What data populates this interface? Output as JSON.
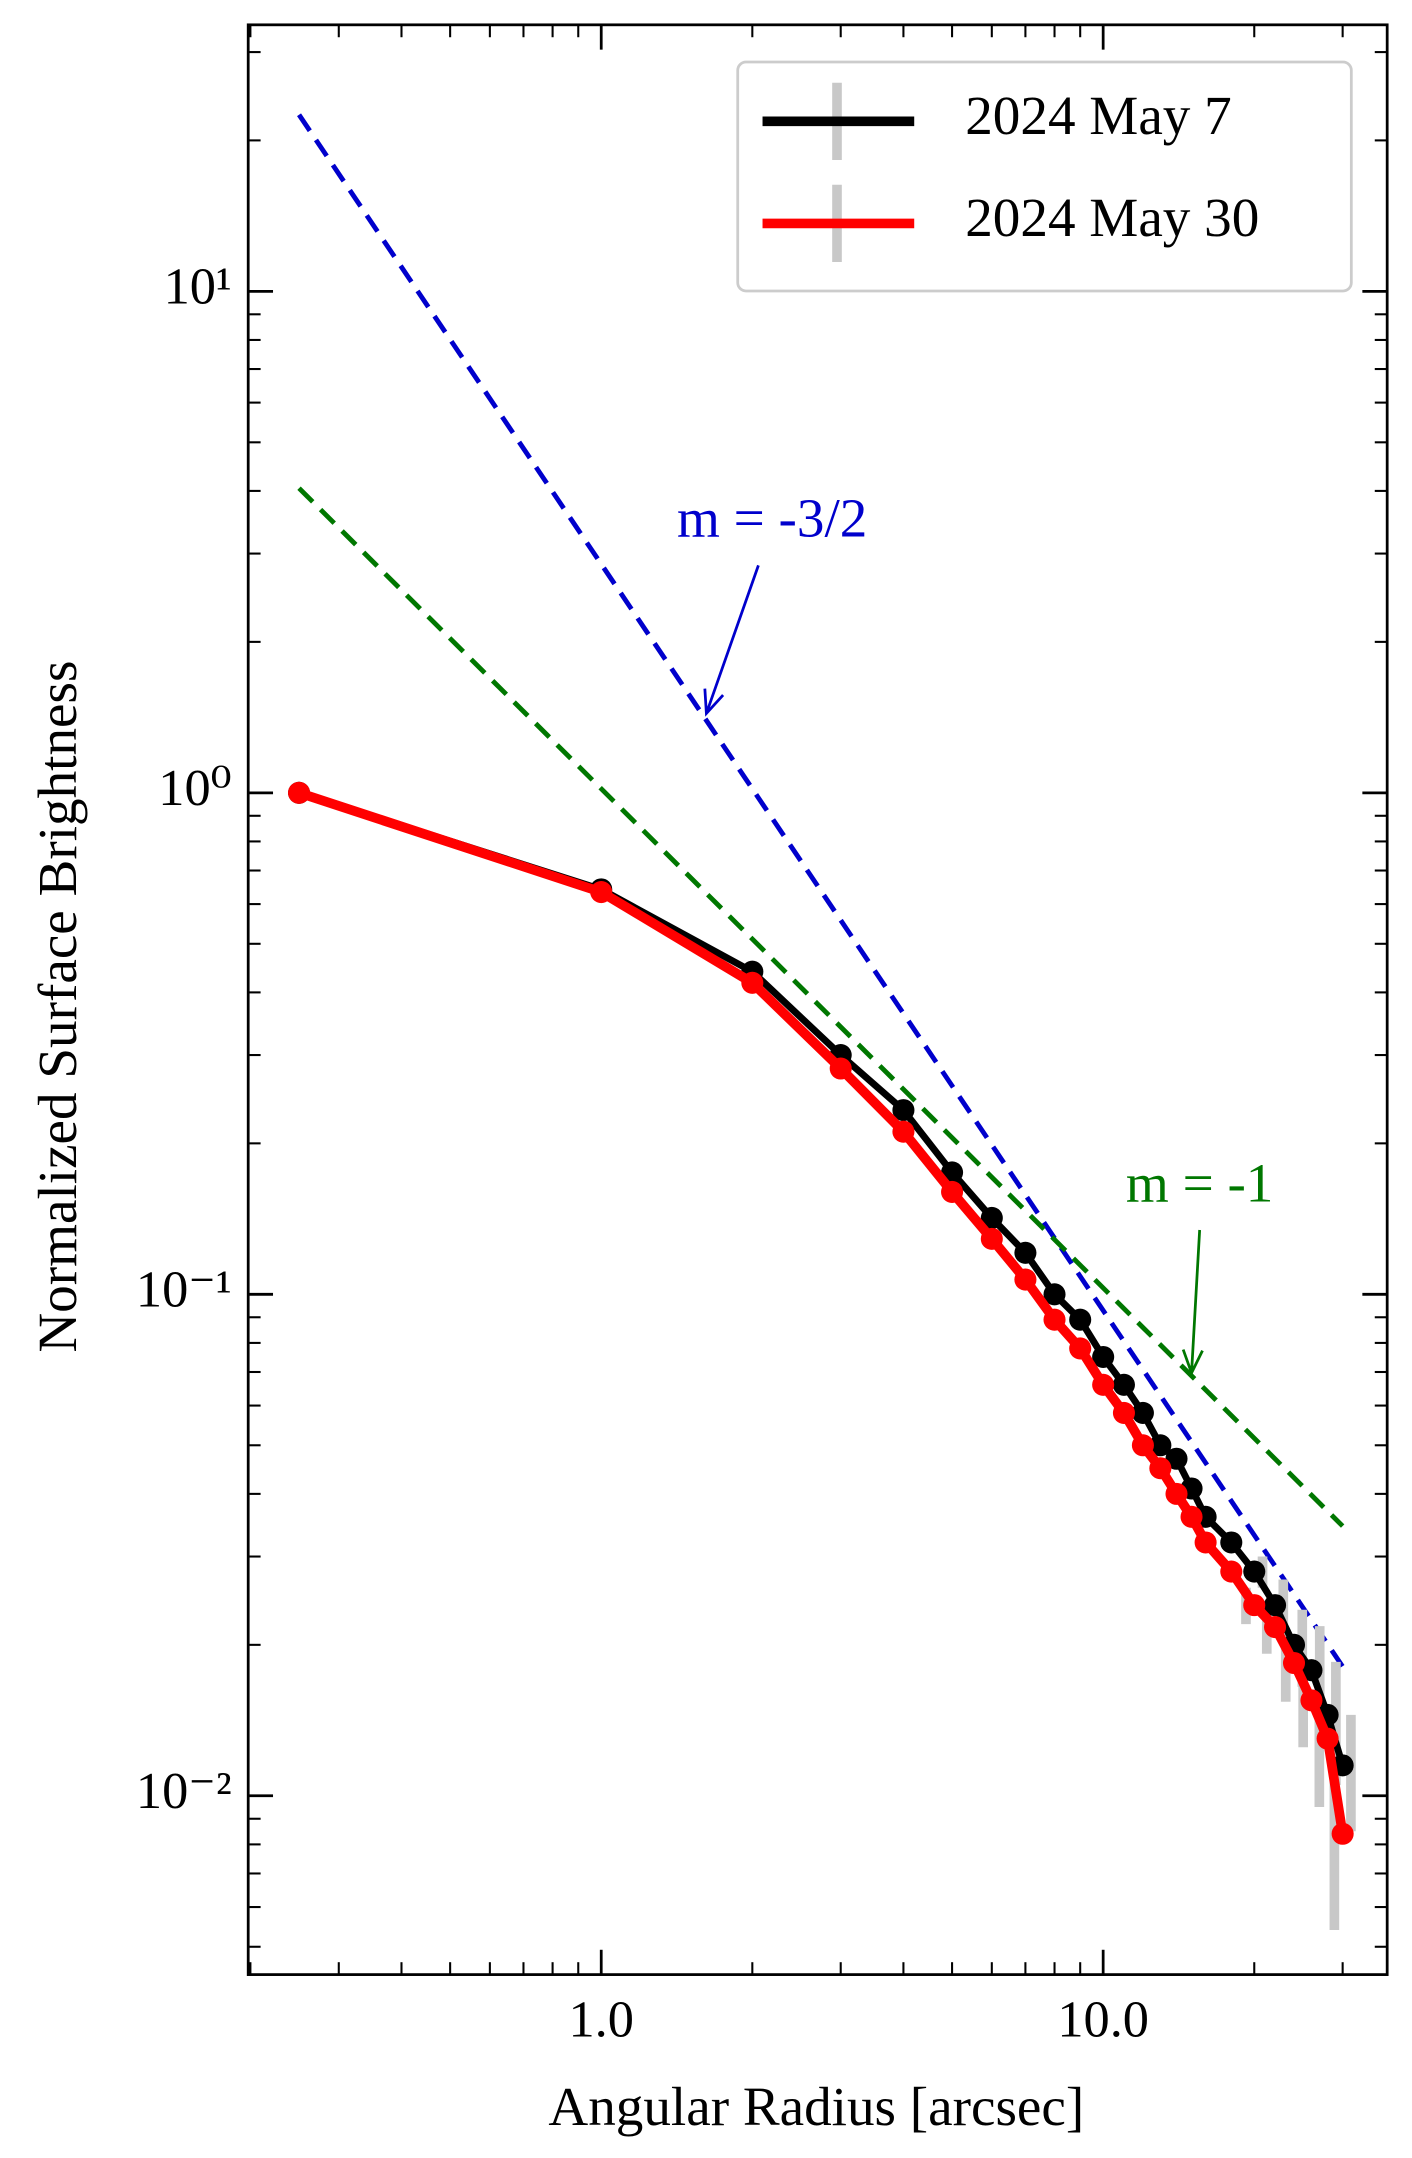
{
  "chart_data": {
    "type": "line",
    "xlabel": "Angular Radius [arcsec]",
    "ylabel": "Normalized Surface Brightness",
    "xscale": "log",
    "yscale": "log",
    "xlim": [
      0.198,
      36.8
    ],
    "ylim": [
      0.0044,
      34
    ],
    "xticks": [
      {
        "value": 1,
        "label": "1.0"
      },
      {
        "value": 10,
        "label": "10.0"
      }
    ],
    "yticks": [
      {
        "value": 0.01,
        "label": "10⁻²"
      },
      {
        "value": 0.1,
        "label": "10⁻¹"
      },
      {
        "value": 1,
        "label": "10⁰"
      },
      {
        "value": 10,
        "label": "10¹"
      }
    ],
    "legend": "upper right",
    "x": [
      0.25,
      1,
      2,
      3,
      4,
      5,
      6,
      7,
      8,
      9,
      10,
      11,
      12,
      13,
      14,
      15,
      16,
      18,
      20,
      22,
      24,
      26,
      28,
      30
    ],
    "series": [
      {
        "name": "2024 May 7",
        "color": "#000000",
        "error_color": "#c8c8c8",
        "values": [
          1.0,
          0.642,
          0.44,
          0.3,
          0.233,
          0.175,
          0.142,
          0.121,
          0.1,
          0.089,
          0.075,
          0.066,
          0.058,
          0.05,
          0.047,
          0.041,
          0.036,
          0.032,
          0.028,
          0.024,
          0.02,
          0.0178,
          0.0145,
          0.0115
        ],
        "errors": [
          null,
          null,
          null,
          null,
          null,
          null,
          null,
          null,
          null,
          null,
          null,
          null,
          null,
          null,
          null,
          null,
          null,
          null,
          0.002,
          0.003,
          0.0035,
          0.004,
          0.004,
          0.003
        ]
      },
      {
        "name": "2024 May 30",
        "color": "#ff0000",
        "error_color": "#c8c8c8",
        "values": [
          1.0,
          0.634,
          0.418,
          0.282,
          0.211,
          0.16,
          0.129,
          0.107,
          0.089,
          0.078,
          0.066,
          0.058,
          0.05,
          0.045,
          0.04,
          0.036,
          0.032,
          0.028,
          0.024,
          0.0217,
          0.0184,
          0.0155,
          0.013,
          0.0084
        ],
        "errors": [
          null,
          null,
          null,
          null,
          null,
          null,
          null,
          null,
          null,
          null,
          null,
          null,
          null,
          null,
          null,
          null,
          null,
          null,
          0.002,
          0.0025,
          0.003,
          0.003,
          0.0035,
          0.003
        ]
      }
    ],
    "reference_lines": [
      {
        "x": [
          0.25,
          30
        ],
        "values": [
          22.5,
          0.0181
        ],
        "color": "#0000cc",
        "style": "dashed"
      },
      {
        "x": [
          0.25,
          30
        ],
        "values": [
          4.05,
          0.0345
        ],
        "color": "#007700",
        "style": "dashed"
      }
    ],
    "annotations": [
      {
        "text": "m = -3/2",
        "xy": [
          1.62,
          1.44
        ],
        "color": "#0000cc"
      },
      {
        "text": "m = -1",
        "xy": [
          15,
          0.0697
        ],
        "color": "#007700"
      }
    ]
  }
}
